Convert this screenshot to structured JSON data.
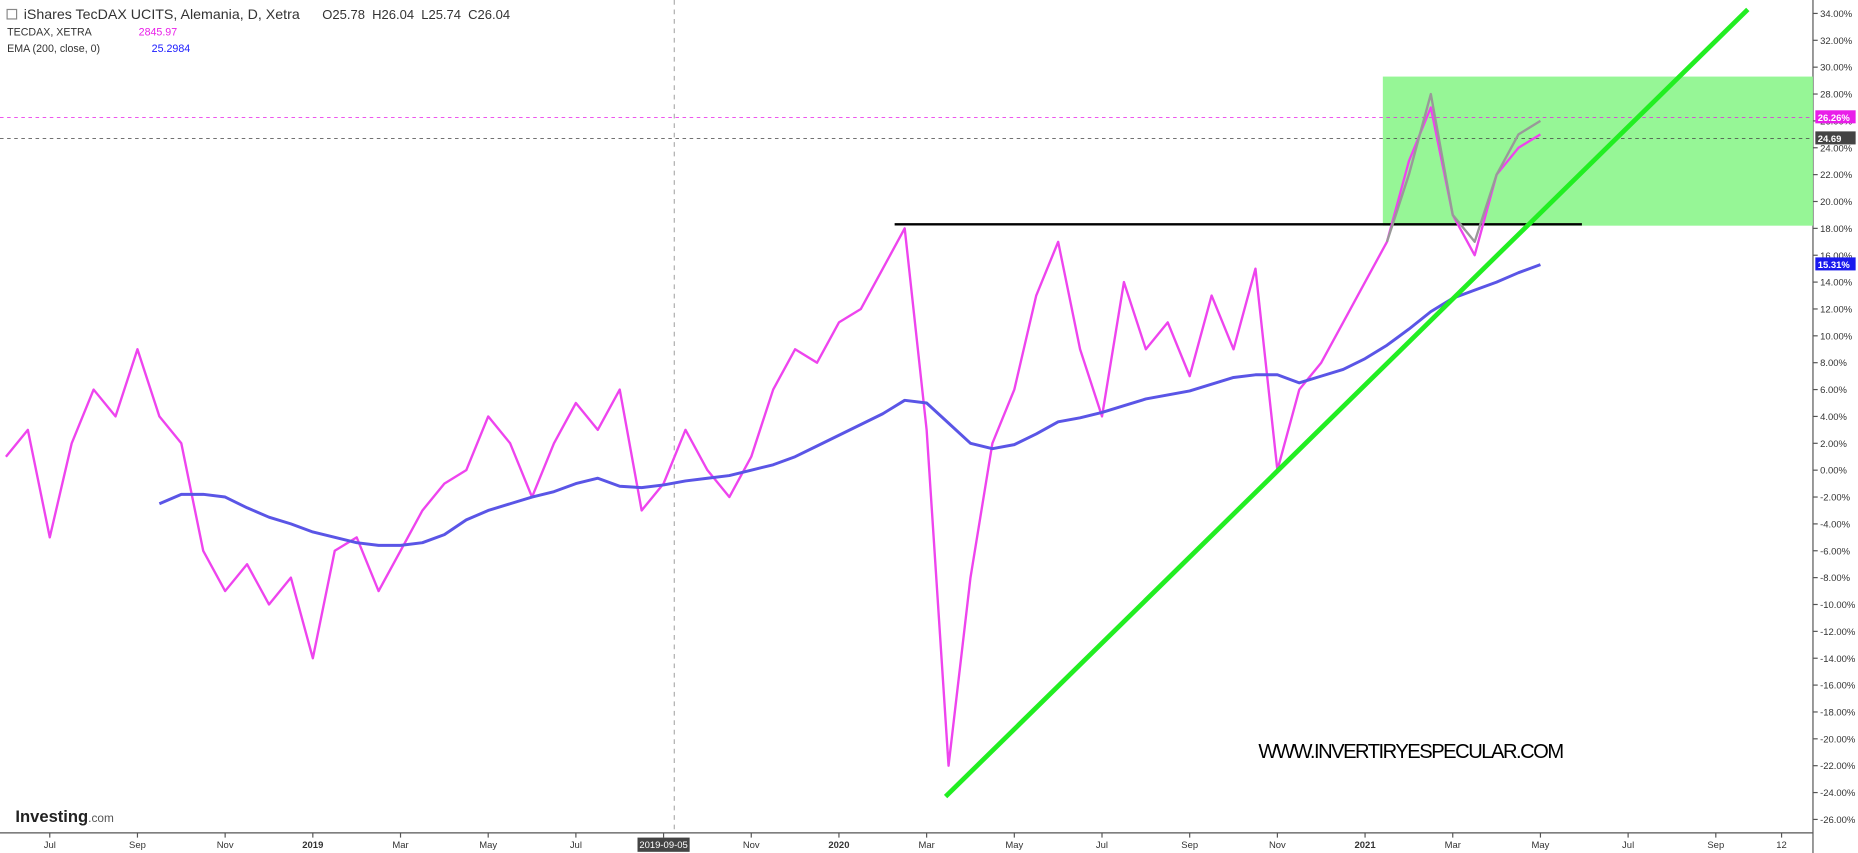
{
  "chart_data": {
    "type": "line",
    "title": "iShares TecDAX UCITS, Alemania, D, Xetra",
    "ohlc": [
      "O25.78",
      "H26.04",
      "L25.74",
      "C26.04"
    ],
    "legend_items": [
      {
        "name": "TECDAX, XETRA",
        "value": "2845.97",
        "color": "#e91ee9"
      },
      {
        "name": "EMA (200, close, 0)",
        "value": "25.2984",
        "color": "#1a1aff"
      }
    ],
    "watermark": "WWW.INVERTIRYESPECULAR.COM",
    "logo": [
      "Investing",
      ".com"
    ],
    "categories": [
      null,
      null,
      "Jul",
      null,
      null,
      null,
      "Sep",
      null,
      null,
      null,
      "Nov",
      null,
      null,
      null,
      "2019",
      null,
      null,
      null,
      "Mar",
      null,
      null,
      null,
      "May",
      null,
      null,
      null,
      "Jul",
      null,
      null,
      null,
      "2019-09-05",
      null,
      null,
      null,
      "Nov",
      null,
      null,
      null,
      "2020",
      null,
      null,
      null,
      "Mar",
      null,
      null,
      null,
      "May",
      null,
      null,
      null,
      "Jul",
      null,
      null,
      null,
      "Sep",
      null,
      null,
      null,
      "Nov",
      null,
      null,
      null,
      "2021",
      null,
      null,
      null,
      "Mar",
      null,
      null,
      null,
      "May",
      null,
      null,
      null,
      "Jul",
      null,
      null,
      null,
      "Sep",
      null,
      null,
      "12",
      null
    ],
    "series": [
      {
        "name": "TECDAX, XETRA",
        "color": "#ee44ee",
        "values": [
          1,
          3,
          -5,
          2,
          6,
          4,
          9,
          4,
          2,
          -6,
          -9,
          -7,
          -10,
          -8,
          -14,
          -6,
          -5,
          -9,
          -6,
          -3,
          -1,
          0,
          4,
          2,
          -2,
          2,
          5,
          3,
          6,
          -3,
          -1,
          3,
          0,
          -2,
          1,
          6,
          9,
          8,
          11,
          12,
          15,
          18,
          3,
          -22,
          -8,
          2,
          6,
          13,
          17,
          9,
          4,
          14,
          9,
          11,
          7,
          13,
          9,
          15,
          0,
          6,
          8,
          11,
          14,
          17,
          23,
          27,
          19,
          16,
          22,
          24,
          25,
          null,
          null,
          null,
          null,
          null,
          null,
          null,
          null,
          null,
          null,
          null,
          null
        ]
      },
      {
        "name": "EMA (200, close, 0)",
        "color": "#5a55e6",
        "values": [
          null,
          null,
          null,
          null,
          null,
          null,
          null,
          -2.5,
          -1.8,
          -1.8,
          -2,
          -2.8,
          -3.5,
          -4,
          -4.6,
          -5,
          -5.4,
          -5.6,
          -5.6,
          -5.4,
          -4.8,
          -3.7,
          -3,
          -2.5,
          -2,
          -1.6,
          -1,
          -0.6,
          -1.2,
          -1.3,
          -1.1,
          -0.8,
          -0.6,
          -0.4,
          0,
          0.4,
          1,
          1.8,
          2.6,
          3.4,
          4.2,
          5.2,
          5,
          3.5,
          2,
          1.6,
          1.9,
          2.7,
          3.6,
          3.9,
          4.3,
          4.8,
          5.3,
          5.6,
          5.9,
          6.4,
          6.9,
          7.1,
          7.1,
          6.5,
          7,
          7.5,
          8.3,
          9.3,
          10.5,
          11.8,
          12.8,
          13.4,
          14,
          14.7,
          15.3,
          null,
          null,
          null,
          null,
          null,
          null,
          null,
          null,
          null,
          null,
          null,
          null
        ]
      },
      {
        "name": "iShares TecDAX UCITS",
        "color": "#999999",
        "values": [
          null,
          null,
          null,
          null,
          null,
          null,
          null,
          null,
          null,
          null,
          null,
          null,
          null,
          null,
          null,
          null,
          null,
          null,
          null,
          null,
          null,
          null,
          null,
          null,
          null,
          null,
          null,
          null,
          null,
          null,
          null,
          null,
          null,
          null,
          null,
          null,
          null,
          null,
          null,
          null,
          null,
          null,
          null,
          null,
          null,
          null,
          null,
          null,
          null,
          null,
          null,
          null,
          null,
          null,
          null,
          null,
          null,
          null,
          null,
          null,
          null,
          null,
          null,
          17,
          22,
          28,
          19,
          17,
          22,
          25,
          26,
          null,
          null,
          null,
          null,
          null,
          null,
          null,
          null,
          null,
          null,
          null,
          null
        ]
      }
    ],
    "ylim": [
      -27,
      35
    ],
    "yticks": [
      {
        "value": -26,
        "label": "-26.00%"
      },
      {
        "value": -24,
        "label": "-24.00%"
      },
      {
        "value": -22,
        "label": "-22.00%"
      },
      {
        "value": -20,
        "label": "-20.00%"
      },
      {
        "value": -18,
        "label": "-18.00%"
      },
      {
        "value": -16,
        "label": "-16.00%"
      },
      {
        "value": -14,
        "label": "-14.00%"
      },
      {
        "value": -12,
        "label": "-12.00%"
      },
      {
        "value": -10,
        "label": "-10.00%"
      },
      {
        "value": -8,
        "label": "-8.00%"
      },
      {
        "value": -6,
        "label": "-6.00%"
      },
      {
        "value": -4,
        "label": "-4.00%"
      },
      {
        "value": -2,
        "label": "-2.00%"
      },
      {
        "value": 0,
        "label": "0.00%"
      },
      {
        "value": 2,
        "label": "2.00%"
      },
      {
        "value": 4,
        "label": "4.00%"
      },
      {
        "value": 6,
        "label": "6.00%"
      },
      {
        "value": 8,
        "label": "8.00%"
      },
      {
        "value": 10,
        "label": "10.00%"
      },
      {
        "value": 12,
        "label": "12.00%"
      },
      {
        "value": 14,
        "label": "14.00%"
      },
      {
        "value": 16,
        "label": "16.00%"
      },
      {
        "value": 18,
        "label": "18.00%"
      },
      {
        "value": 20,
        "label": "20.00%"
      },
      {
        "value": 22,
        "label": "22.00%"
      },
      {
        "value": 24,
        "label": "24.00%"
      },
      {
        "value": 26,
        "label": "26.00%"
      },
      {
        "value": 28,
        "label": "28.00%"
      },
      {
        "value": 30,
        "label": "30.00%"
      },
      {
        "value": 32,
        "label": "32.00%"
      },
      {
        "value": 34,
        "label": "34.00%"
      }
    ],
    "price_labels": [
      {
        "value": 26.26,
        "label": "26.26%",
        "color": "#e91ee9"
      },
      {
        "value": 24.69,
        "label": "24.69",
        "color": "#444444"
      },
      {
        "value": 15.31,
        "label": "15.31%",
        "color": "#1a1aee"
      }
    ],
    "channel": {
      "ylim": [
        18.2,
        29.3
      ],
      "color": "#90f590"
    },
    "resistance": {
      "value": 18.3,
      "color": "#000000"
    },
    "trendline": {
      "values": [
        -24.3,
        34.3
      ],
      "color": "#22ee22"
    }
  }
}
